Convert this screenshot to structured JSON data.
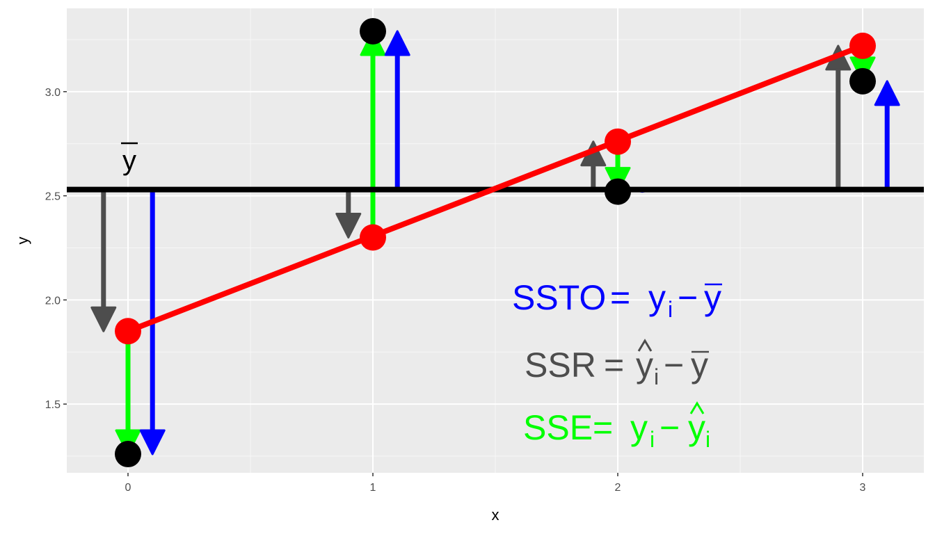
{
  "chart_data": {
    "type": "scatter",
    "xlabel": "x",
    "ylabel": "y",
    "xlim": [
      -0.25,
      3.25
    ],
    "ylim": [
      1.17,
      3.4
    ],
    "x_ticks": [
      0,
      1,
      2,
      3
    ],
    "y_ticks": [
      1.5,
      2.0,
      2.5,
      3.0
    ],
    "x_tick_labels": [
      "0",
      "1",
      "2",
      "3"
    ],
    "y_tick_labels": [
      "1.5",
      "2.0",
      "2.5",
      "3.0"
    ],
    "grid": true,
    "observed": {
      "x": [
        0,
        1,
        2,
        3
      ],
      "y": [
        1.26,
        3.29,
        2.52,
        3.05
      ],
      "color": "#000000"
    },
    "fitted": {
      "x": [
        0,
        1,
        2,
        3
      ],
      "y": [
        1.85,
        2.3,
        2.76,
        3.22
      ],
      "color": "#ff0000"
    },
    "mean_y": 2.53,
    "mean_label": "y",
    "sse_arrows": {
      "color": "#00ff00",
      "x_offset": 0.0
    },
    "ssr_arrows": {
      "color": "#4d4d4d",
      "x_offset": -0.1
    },
    "ssto_arrows": {
      "color": "#0000ff",
      "x_offset": 0.1
    },
    "annotations": {
      "ssto": {
        "parts": [
          "SSTO",
          "=",
          "y",
          "i",
          "−",
          "y"
        ],
        "color": "#0000ff"
      },
      "ssr": {
        "parts": [
          "SSR",
          "=",
          "y",
          "i",
          "−",
          "y"
        ],
        "color": "#4d4d4d"
      },
      "sse": {
        "parts": [
          "SSE",
          "=",
          "y",
          "i",
          "−",
          "y",
          "i"
        ],
        "color": "#00ff00"
      }
    }
  }
}
